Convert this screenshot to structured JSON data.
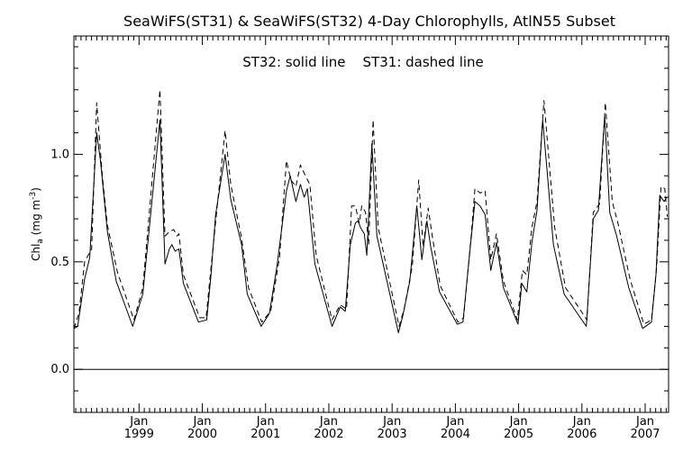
{
  "chart_data": {
    "type": "line",
    "title": "SeaWiFS(ST31) & SeaWiFS(ST32) 4-Day Chlorophylls, AtlN55 Subset",
    "annotation": "ST32: solid line    ST31: dashed line",
    "ylabel_main": "Chl",
    "ylabel_sub": "a",
    "ylabel_unit": " (mg m",
    "ylabel_exp": "-3",
    "ylabel_close": ")",
    "xlim": [
      1997.97,
      2007.37
    ],
    "ylim": [
      -0.2,
      1.55
    ],
    "zero_line": true,
    "y_ticks": [
      0.0,
      0.5,
      1.0
    ],
    "y_tick_labels": [
      "0.0",
      "0.5",
      "1.0"
    ],
    "y_minor_ticks": [
      -0.1,
      0.1,
      0.2,
      0.3,
      0.4,
      0.6,
      0.7,
      0.8,
      0.9,
      1.1,
      1.2,
      1.3,
      1.4,
      1.5
    ],
    "x_ticks": [
      {
        "x": 1999.0,
        "month": "Jan",
        "year": "1999"
      },
      {
        "x": 2000.0,
        "month": "Jan",
        "year": "2000"
      },
      {
        "x": 2001.0,
        "month": "Jan",
        "year": "2001"
      },
      {
        "x": 2002.0,
        "month": "Jan",
        "year": "2002"
      },
      {
        "x": 2003.0,
        "month": "Jan",
        "year": "2003"
      },
      {
        "x": 2004.0,
        "month": "Jan",
        "year": "2004"
      },
      {
        "x": 2005.0,
        "month": "Jan",
        "year": "2005"
      },
      {
        "x": 2006.0,
        "month": "Jan",
        "year": "2006"
      },
      {
        "x": 2007.0,
        "month": "Jan",
        "year": "2007"
      }
    ],
    "x_minor_step": 0.0833333,
    "series": [
      {
        "name": "ST32",
        "style": "solid",
        "x": [
          1997.97,
          1998.03,
          1998.14,
          1998.22,
          1998.33,
          1998.39,
          1998.5,
          1998.64,
          1998.9,
          1999.06,
          1999.33,
          1999.41,
          1999.48,
          1999.52,
          1999.57,
          1999.63,
          1999.7,
          1999.94,
          2000.07,
          2000.14,
          2000.21,
          2000.36,
          2000.45,
          2000.62,
          2000.71,
          2000.93,
          2001.06,
          2001.18,
          2001.33,
          2001.39,
          2001.48,
          2001.55,
          2001.61,
          2001.66,
          2001.78,
          2002.05,
          2002.18,
          2002.26,
          2002.34,
          2002.42,
          2002.46,
          2002.5,
          2002.56,
          2002.6,
          2002.68,
          2002.76,
          2003.1,
          2003.17,
          2003.28,
          2003.39,
          2003.47,
          2003.55,
          2003.61,
          2003.75,
          2004.03,
          2004.12,
          2004.23,
          2004.31,
          2004.39,
          2004.47,
          2004.56,
          2004.65,
          2004.76,
          2004.99,
          2005.05,
          2005.13,
          2005.21,
          2005.29,
          2005.38,
          2005.55,
          2005.72,
          2006.07,
          2006.18,
          2006.26,
          2006.36,
          2006.44,
          2006.55,
          2006.74,
          2006.96,
          2007.1,
          2007.17,
          2007.23,
          2007.3,
          2007.34
        ],
        "values": [
          0.19,
          0.2,
          0.42,
          0.52,
          1.1,
          0.97,
          0.64,
          0.41,
          0.2,
          0.35,
          1.16,
          0.49,
          0.56,
          0.58,
          0.55,
          0.56,
          0.4,
          0.22,
          0.23,
          0.45,
          0.72,
          1.0,
          0.79,
          0.58,
          0.35,
          0.2,
          0.26,
          0.48,
          0.83,
          0.9,
          0.78,
          0.86,
          0.8,
          0.84,
          0.49,
          0.2,
          0.29,
          0.27,
          0.58,
          0.68,
          0.69,
          0.66,
          0.63,
          0.53,
          1.05,
          0.62,
          0.17,
          0.25,
          0.41,
          0.76,
          0.51,
          0.69,
          0.57,
          0.36,
          0.21,
          0.22,
          0.55,
          0.78,
          0.76,
          0.72,
          0.46,
          0.59,
          0.38,
          0.21,
          0.4,
          0.36,
          0.59,
          0.74,
          1.16,
          0.58,
          0.35,
          0.2,
          0.7,
          0.74,
          1.18,
          0.73,
          0.62,
          0.38,
          0.19,
          0.22,
          0.44,
          0.81,
          0.78,
          0.8
        ]
      },
      {
        "name": "ST31",
        "style": "dashed",
        "x": [
          1997.97,
          1998.05,
          1998.14,
          1998.25,
          1998.33,
          1998.42,
          1998.5,
          1998.66,
          1998.92,
          1999.06,
          1999.33,
          1999.41,
          1999.48,
          1999.55,
          1999.6,
          1999.63,
          1999.7,
          1999.96,
          2000.06,
          2000.15,
          2000.25,
          2000.36,
          2000.45,
          2000.62,
          2000.73,
          2000.94,
          2001.08,
          2001.22,
          2001.33,
          2001.4,
          2001.48,
          2001.55,
          2001.63,
          2001.7,
          2001.8,
          2002.05,
          2002.18,
          2002.28,
          2002.36,
          2002.42,
          2002.48,
          2002.52,
          2002.58,
          2002.63,
          2002.7,
          2002.78,
          2003.11,
          2003.19,
          2003.32,
          2003.42,
          2003.49,
          2003.57,
          2003.63,
          2003.76,
          2004.04,
          2004.13,
          2004.25,
          2004.31,
          2004.39,
          2004.47,
          2004.56,
          2004.65,
          2004.76,
          2004.98,
          2005.06,
          2005.13,
          2005.21,
          2005.29,
          2005.4,
          2005.57,
          2005.74,
          2006.08,
          2006.18,
          2006.28,
          2006.37,
          2006.48,
          2006.57,
          2006.76,
          2006.98,
          2007.1,
          2007.18,
          2007.25,
          2007.31,
          2007.35
        ],
        "values": [
          0.19,
          0.26,
          0.5,
          0.56,
          1.24,
          0.9,
          0.67,
          0.45,
          0.23,
          0.38,
          1.3,
          0.62,
          0.64,
          0.65,
          0.62,
          0.63,
          0.44,
          0.24,
          0.24,
          0.51,
          0.8,
          1.11,
          0.86,
          0.61,
          0.38,
          0.22,
          0.27,
          0.52,
          0.97,
          0.88,
          0.85,
          0.95,
          0.9,
          0.86,
          0.53,
          0.23,
          0.3,
          0.28,
          0.76,
          0.76,
          0.68,
          0.76,
          0.73,
          0.58,
          1.16,
          0.66,
          0.2,
          0.28,
          0.48,
          0.88,
          0.57,
          0.75,
          0.63,
          0.39,
          0.22,
          0.24,
          0.62,
          0.84,
          0.82,
          0.83,
          0.51,
          0.63,
          0.41,
          0.23,
          0.46,
          0.44,
          0.66,
          0.78,
          1.25,
          0.66,
          0.38,
          0.23,
          0.73,
          0.77,
          1.24,
          0.78,
          0.68,
          0.42,
          0.21,
          0.23,
          0.47,
          0.85,
          0.84,
          0.71
        ]
      }
    ]
  }
}
